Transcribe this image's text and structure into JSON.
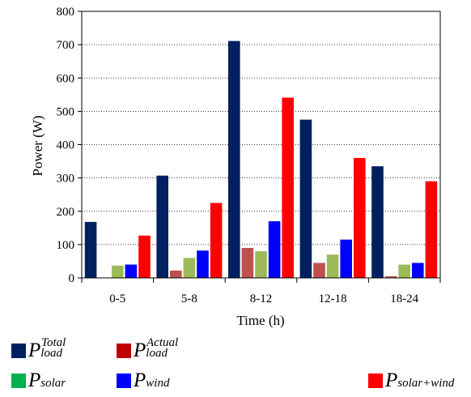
{
  "chart_data": {
    "type": "bar",
    "ylabel": "Power (W)",
    "xlabel": "Time (h)",
    "ylim": [
      0,
      800
    ],
    "yticks": [
      0,
      100,
      200,
      300,
      400,
      500,
      600,
      700,
      800
    ],
    "grid": "horizontal dotted",
    "legend_position": "bottom",
    "categories": [
      "0-5",
      "5-8",
      "8-12",
      "12-18",
      "18-24"
    ],
    "series": [
      {
        "name": "P_load^Total",
        "symbol": "P",
        "subscript": "load",
        "superscript": "Total",
        "color": "#002060",
        "values": [
          168,
          307,
          711,
          475,
          335
        ]
      },
      {
        "name": "P_load^Actual",
        "symbol": "P",
        "subscript": "load",
        "superscript": "Actual",
        "color": "#C0504D",
        "values": [
          0,
          22,
          90,
          45,
          5
        ]
      },
      {
        "name": "P_solar",
        "symbol": "P",
        "subscript": "solar",
        "superscript": "",
        "color": "#9BBB59",
        "values": [
          37,
          60,
          80,
          70,
          40
        ]
      },
      {
        "name": "P_wind",
        "symbol": "P",
        "subscript": "wind",
        "superscript": "",
        "color": "#0000FF",
        "values": [
          40,
          82,
          170,
          115,
          45
        ]
      },
      {
        "name": "P_solar+wind",
        "symbol": "P",
        "subscript": "solar+wind",
        "superscript": "",
        "color": "#FF0000",
        "values": [
          127,
          225,
          541,
          360,
          290
        ]
      }
    ],
    "legend_swatch_colors": [
      "#002060",
      "#C00000",
      "#00B050",
      "#0000FF",
      "#FF0000"
    ]
  }
}
